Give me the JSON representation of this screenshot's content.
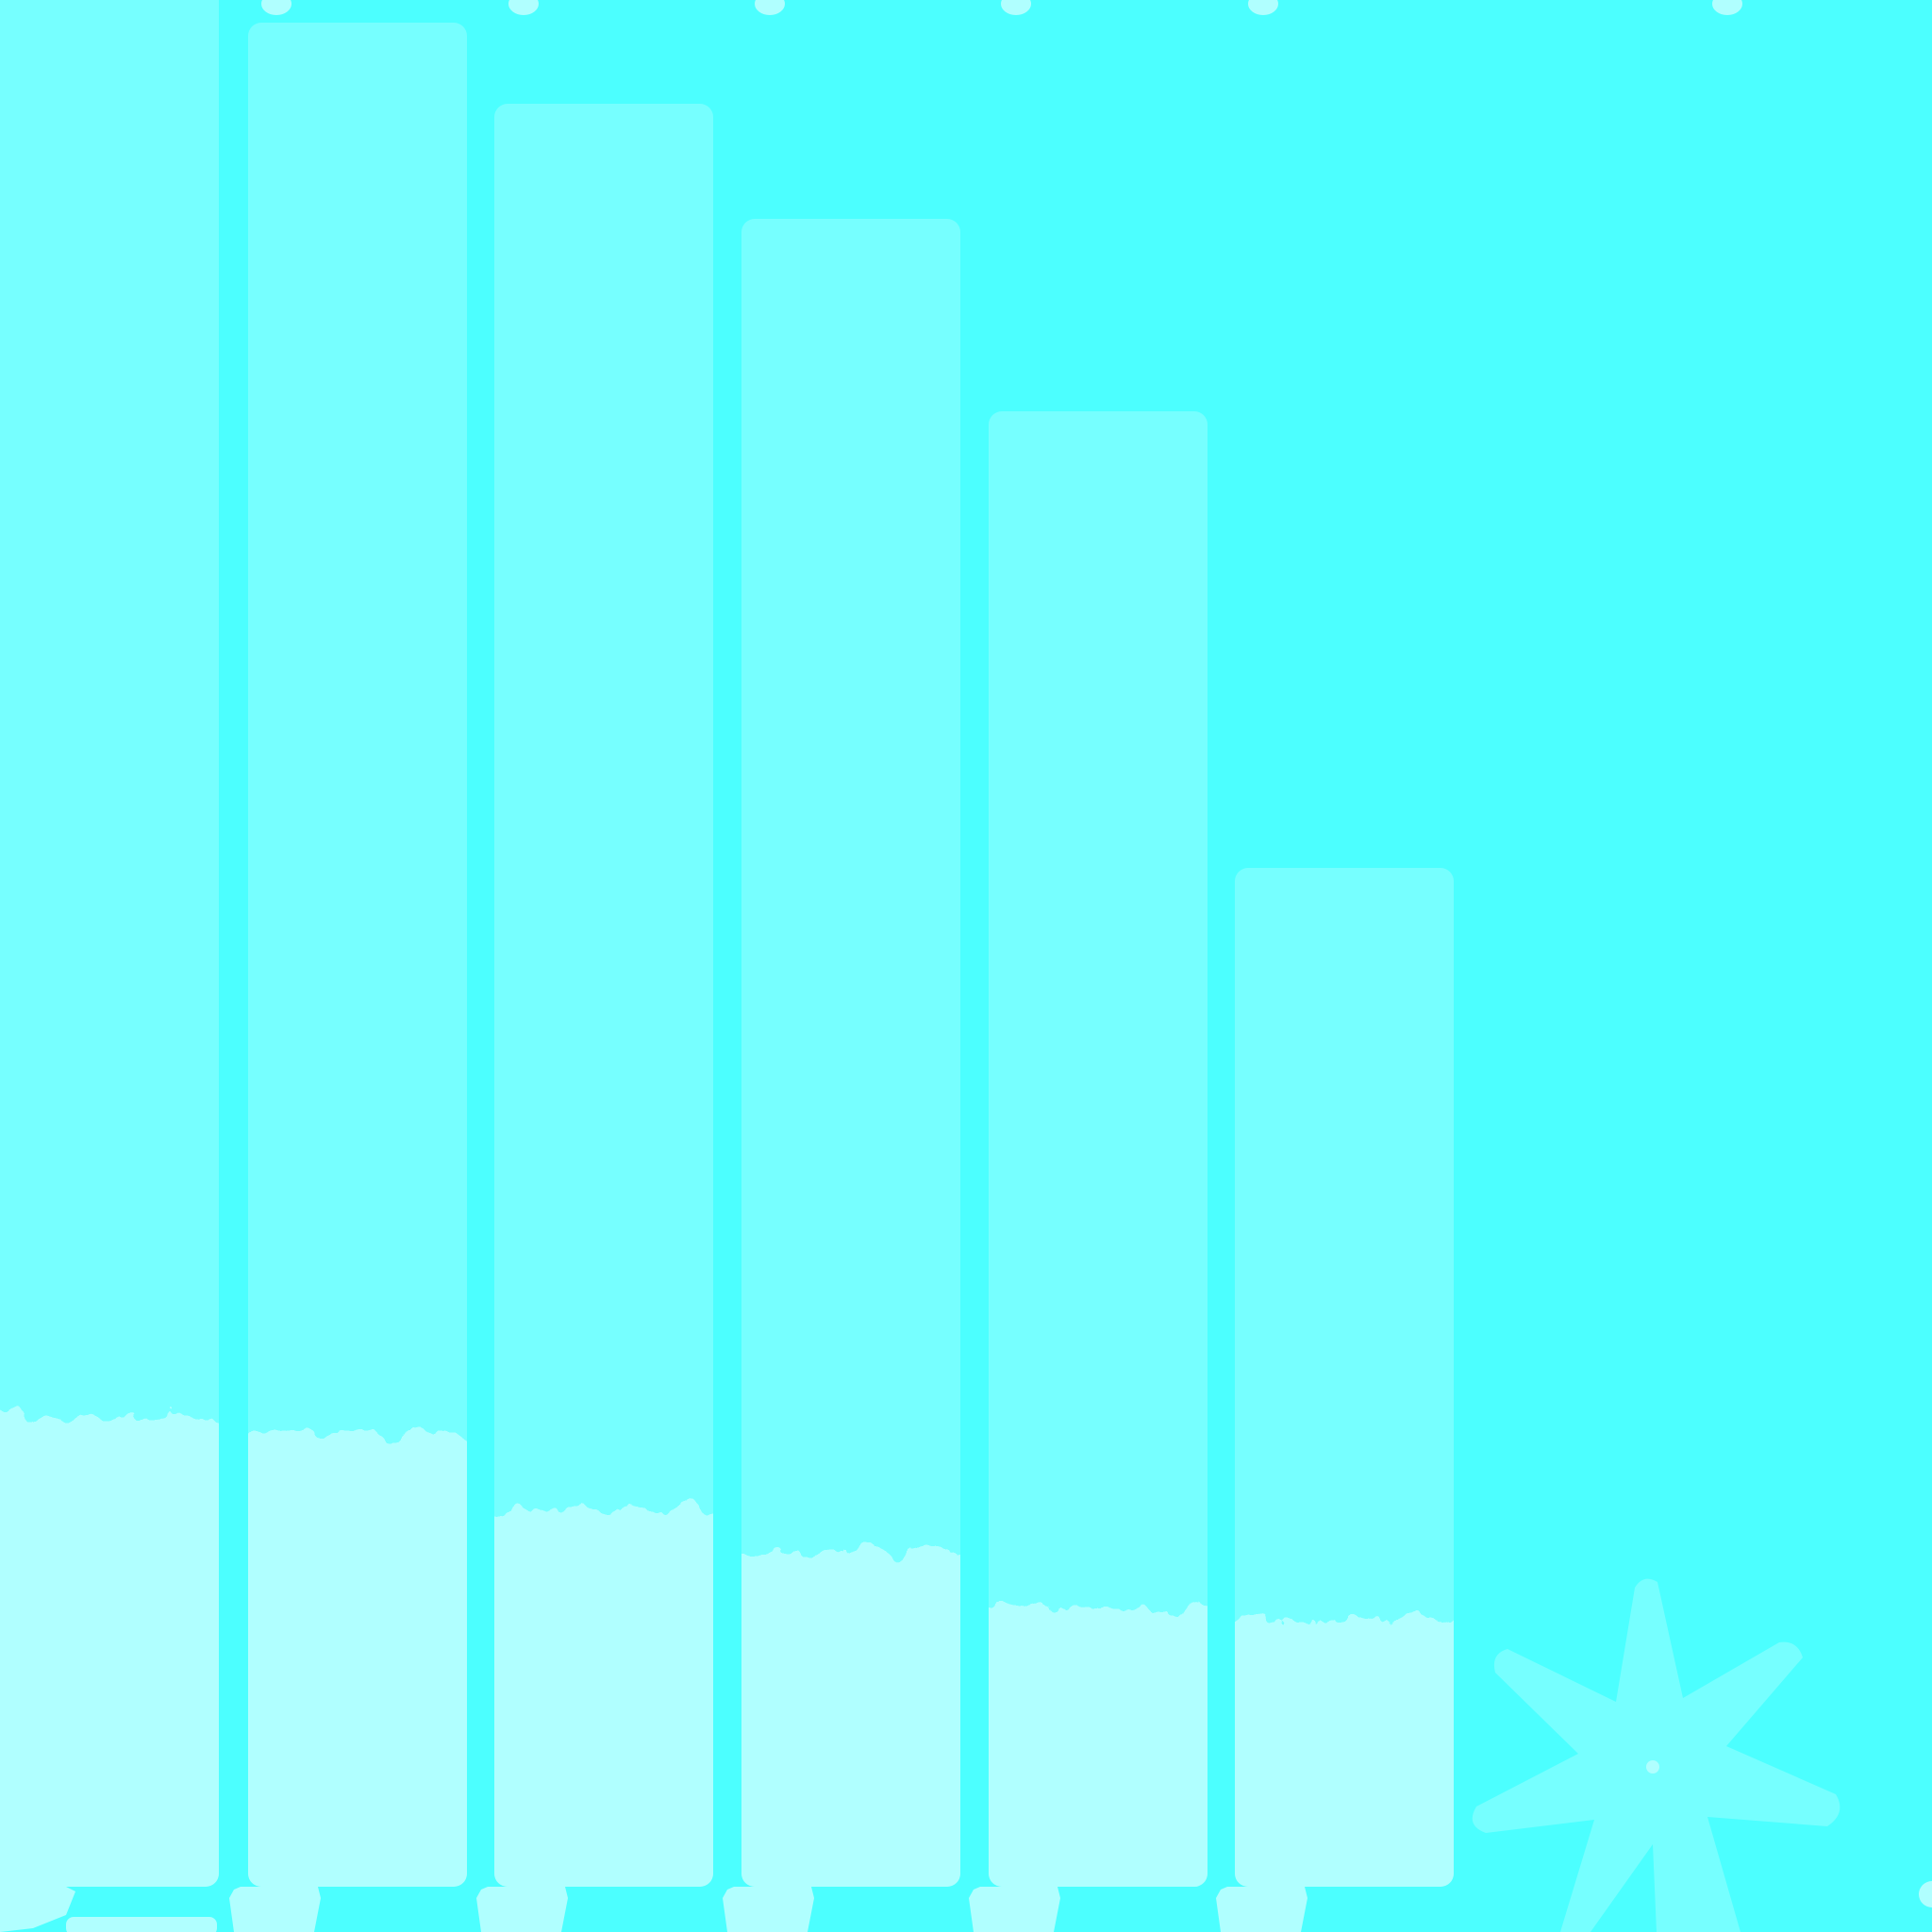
{
  "colors": {
    "background": "#4cffff",
    "bar_fill": "#76ffff",
    "bar_lower_fill": "#b0ffff",
    "peg": "#b0ffff",
    "star": "#76ffff"
  },
  "illustration": {
    "bars": [
      {
        "name": "bar-1"
      },
      {
        "name": "bar-2"
      },
      {
        "name": "bar-3"
      },
      {
        "name": "bar-4"
      },
      {
        "name": "bar-5"
      },
      {
        "name": "bar-6"
      }
    ],
    "icon": "seven-point-star-icon"
  }
}
